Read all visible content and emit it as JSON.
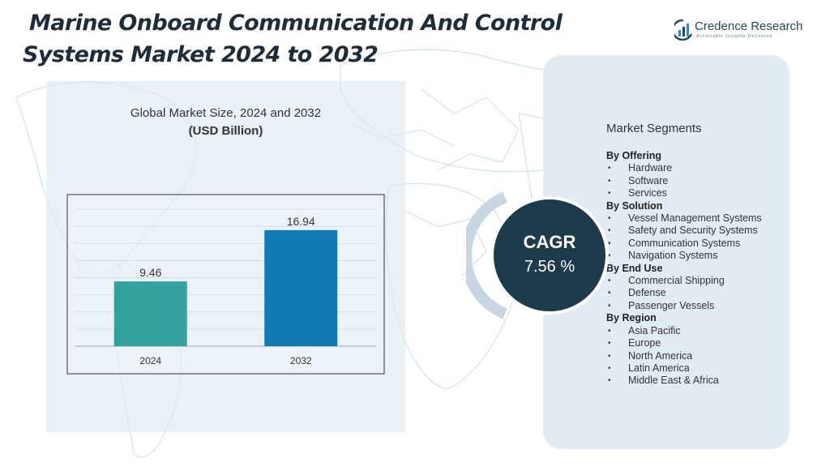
{
  "title": {
    "line1": "Marine Onboard Communication And Control",
    "line2": "Systems Market 2024 to 2032"
  },
  "logo": {
    "name": "Credence Research",
    "tagline": "Actionable Insights Delivered"
  },
  "chart_data": {
    "type": "bar",
    "title": "Global Market Size, 2024 and 2032",
    "subtitle": "(USD Billion)",
    "categories": [
      "2024",
      "2032"
    ],
    "values": [
      9.46,
      16.94
    ],
    "value_labels": [
      "9.46",
      "16.94"
    ],
    "colors": [
      "#34a39f",
      "#1179b3"
    ],
    "ylim": [
      0,
      20
    ],
    "grid": true,
    "xlabel": "",
    "ylabel": ""
  },
  "cagr": {
    "label": "CAGR",
    "value": "7.56 %"
  },
  "segments": {
    "title": "Market Segments",
    "groups": [
      {
        "title": "By Offering",
        "items": [
          "Hardware",
          "Software",
          "Services"
        ]
      },
      {
        "title": "By Solution",
        "items": [
          "Vessel Management Systems",
          "Safety and Security Systems",
          "Communication Systems",
          "Navigation Systems"
        ]
      },
      {
        "title": "By  End Use",
        "items": [
          "Commercial Shipping",
          "Defense",
          "Passenger Vessels"
        ]
      },
      {
        "title": "By Region",
        "items": [
          "Asia Pacific",
          "Europe",
          "North America",
          "Latin America",
          "Middle East & Africa"
        ]
      }
    ]
  },
  "colors": {
    "title_text": "#1f2d3a",
    "panel_bg": "#dce8f2",
    "cagr_circle": "#1d3b4a",
    "bar_2024": "#34a39f",
    "bar_2032": "#1179b3"
  }
}
